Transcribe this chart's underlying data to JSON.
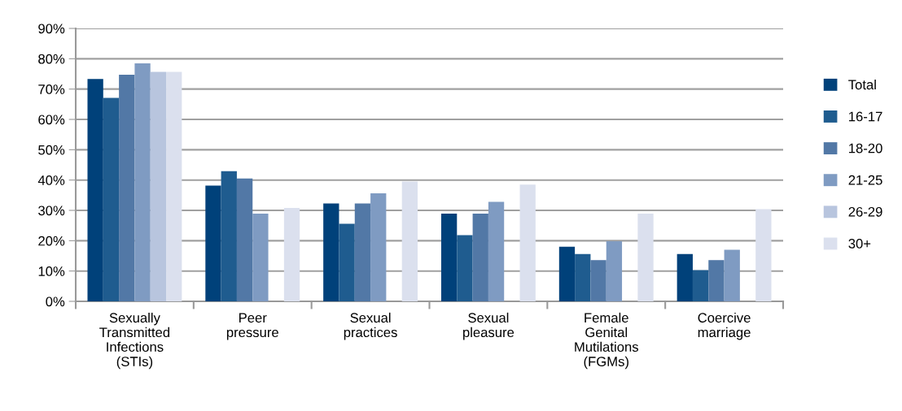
{
  "chart_data": {
    "type": "bar",
    "categories": [
      "Sexually\nTransmitted\nInfections\n(STIs)",
      "Peer\npressure",
      "Sexual\npractices",
      "Sexual\npleasure",
      "Female\nGenital\nMutilations\n(FGMs)",
      "Coercive\nmarriage"
    ],
    "series": [
      {
        "name": "Total",
        "color": "#00417a",
        "values": [
          73.3,
          38.2,
          32.3,
          28.9,
          18.0,
          15.6
        ]
      },
      {
        "name": "16-17",
        "color": "#1f5c8f",
        "values": [
          67.1,
          42.9,
          25.6,
          21.8,
          15.6,
          10.3
        ]
      },
      {
        "name": "18-20",
        "color": "#5278a6",
        "values": [
          74.7,
          40.5,
          32.3,
          28.9,
          13.6,
          13.6
        ]
      },
      {
        "name": "21-25",
        "color": "#7f9bc2",
        "values": [
          78.5,
          28.9,
          35.6,
          32.8,
          19.8,
          17.0
        ]
      },
      {
        "name": "26-29",
        "color": "#b8c5de",
        "values": [
          75.7,
          null,
          null,
          null,
          null,
          null
        ]
      },
      {
        "name": "30+",
        "color": "#dbe0ee",
        "values": [
          75.7,
          30.8,
          39.5,
          38.5,
          28.9,
          30.4
        ]
      }
    ],
    "ylim": [
      0,
      90
    ],
    "yticks": [
      {
        "value": 0,
        "label": "0%"
      },
      {
        "value": 10,
        "label": "10%"
      },
      {
        "value": 20,
        "label": "20%"
      },
      {
        "value": 30,
        "label": "30%"
      },
      {
        "value": 40,
        "label": "40%"
      },
      {
        "value": 50,
        "label": "50%"
      },
      {
        "value": 60,
        "label": "60%"
      },
      {
        "value": 70,
        "label": "70%"
      },
      {
        "value": 80,
        "label": "80%"
      },
      {
        "value": 90,
        "label": "90%"
      }
    ],
    "grid": "y",
    "legend": "right"
  }
}
